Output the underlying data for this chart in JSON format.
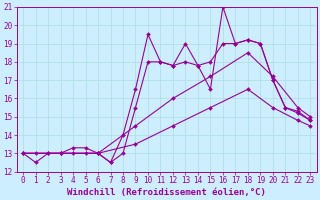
{
  "xlabel": "Windchill (Refroidissement éolien,°C)",
  "xlim": [
    -0.5,
    23.5
  ],
  "ylim": [
    12,
    21
  ],
  "bg_color": "#cceeff",
  "line_color": "#990099",
  "grid_color": "#aadddd",
  "lines": [
    {
      "x": [
        0,
        1,
        2,
        3,
        4,
        5,
        6,
        7,
        8,
        9,
        10,
        11,
        12,
        13,
        14,
        15,
        16,
        17,
        18,
        19,
        20,
        21,
        22,
        23
      ],
      "y": [
        13.0,
        12.5,
        13.0,
        13.0,
        13.0,
        13.0,
        13.0,
        12.5,
        14.0,
        16.5,
        19.5,
        18.0,
        17.8,
        19.0,
        17.8,
        16.5,
        21.0,
        19.0,
        19.2,
        19.0,
        17.0,
        15.5,
        15.2,
        14.8
      ]
    },
    {
      "x": [
        0,
        1,
        2,
        3,
        4,
        5,
        6,
        7,
        8,
        9,
        10,
        11,
        12,
        13,
        14,
        15,
        16,
        17,
        18,
        19,
        20,
        21,
        22,
        23
      ],
      "y": [
        13.0,
        13.0,
        13.0,
        13.0,
        13.3,
        13.3,
        13.0,
        12.5,
        13.0,
        15.5,
        18.0,
        18.0,
        17.8,
        18.0,
        17.8,
        18.0,
        19.0,
        19.0,
        19.2,
        19.0,
        17.0,
        15.5,
        15.3,
        14.8
      ]
    },
    {
      "x": [
        0,
        3,
        6,
        9,
        12,
        15,
        18,
        20,
        22,
        23
      ],
      "y": [
        13.0,
        13.0,
        13.0,
        14.5,
        16.0,
        17.2,
        18.5,
        17.2,
        15.5,
        15.0
      ]
    },
    {
      "x": [
        0,
        3,
        6,
        9,
        12,
        15,
        18,
        20,
        22,
        23
      ],
      "y": [
        13.0,
        13.0,
        13.0,
        13.5,
        14.5,
        15.5,
        16.5,
        15.5,
        14.8,
        14.5
      ]
    }
  ],
  "xticks": [
    0,
    1,
    2,
    3,
    4,
    5,
    6,
    7,
    8,
    9,
    10,
    11,
    12,
    13,
    14,
    15,
    16,
    17,
    18,
    19,
    20,
    21,
    22,
    23
  ],
  "yticks": [
    12,
    13,
    14,
    15,
    16,
    17,
    18,
    19,
    20,
    21
  ],
  "tick_fontsize": 5.5,
  "xlabel_fontsize": 6.5,
  "markersize": 2.0,
  "linewidth": 0.8
}
